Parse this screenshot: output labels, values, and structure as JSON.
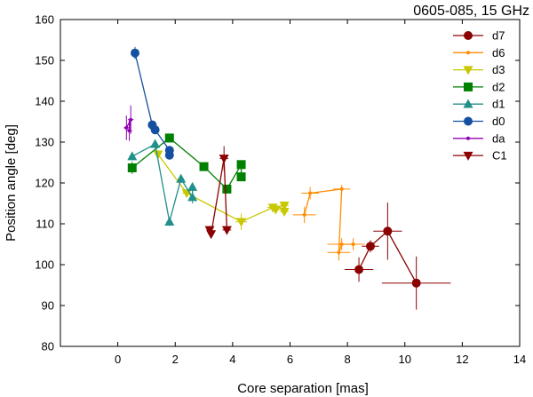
{
  "chart_data": {
    "type": "scatter",
    "title": "0605-085, 15 GHz",
    "xlabel": "Core separation [mas]",
    "ylabel": "Position angle [deg]",
    "xlim": [
      -2,
      14
    ],
    "ylim": [
      80,
      160
    ],
    "xticks": [
      0,
      2,
      4,
      6,
      8,
      10,
      12,
      14
    ],
    "yticks": [
      80,
      90,
      100,
      110,
      120,
      130,
      140,
      150,
      160
    ],
    "legend_position": "top-right",
    "series": [
      {
        "name": "d7",
        "color": "#8b0000",
        "marker": "circle",
        "points": [
          {
            "x": 8.4,
            "y": 98.8,
            "xerr": 0.5,
            "yerr": 3
          },
          {
            "x": 8.8,
            "y": 104.5,
            "xerr": 0.3,
            "yerr": 1.5
          },
          {
            "x": 9.4,
            "y": 108.2,
            "xerr": 0.5,
            "yerr": 7
          },
          {
            "x": 10.4,
            "y": 95.5,
            "xerr": 1.2,
            "yerr": 6.5
          }
        ]
      },
      {
        "name": "d6",
        "color": "#ff8c00",
        "marker": "dot",
        "points": [
          {
            "x": 6.5,
            "y": 112.2,
            "xerr": 0.4,
            "yerr": 2
          },
          {
            "x": 6.7,
            "y": 117.5,
            "xerr": 0.3,
            "yerr": 1.5
          },
          {
            "x": 7.8,
            "y": 118.5,
            "xerr": 0.3,
            "yerr": 1
          },
          {
            "x": 7.7,
            "y": 103.0,
            "xerr": 0.4,
            "yerr": 2
          },
          {
            "x": 7.8,
            "y": 105.0,
            "xerr": 0.5,
            "yerr": 1.5
          },
          {
            "x": 8.2,
            "y": 105.0,
            "xerr": 0.4,
            "yerr": 1.5
          }
        ]
      },
      {
        "name": "d3",
        "color": "#c8c800",
        "marker": "triangle-down",
        "points": [
          {
            "x": 1.4,
            "y": 127.0,
            "xerr": 0.1,
            "yerr": 1
          },
          {
            "x": 2.4,
            "y": 117.5,
            "xerr": 0.15,
            "yerr": 1
          },
          {
            "x": 4.3,
            "y": 110.5,
            "xerr": 0.2,
            "yerr": 2
          },
          {
            "x": 5.4,
            "y": 114.0,
            "xerr": 0.2,
            "yerr": 1
          },
          {
            "x": 5.5,
            "y": 113.5,
            "xerr": 0.15,
            "yerr": 0.5
          },
          {
            "x": 5.8,
            "y": 114.5,
            "xerr": 0.15,
            "yerr": 0.5
          },
          {
            "x": 5.8,
            "y": 113.0,
            "xerr": 0.15,
            "yerr": 0.5
          }
        ]
      },
      {
        "name": "d2",
        "color": "#008000",
        "marker": "square",
        "points": [
          {
            "x": 0.5,
            "y": 123.7,
            "xerr": 0.1,
            "yerr": 1.5
          },
          {
            "x": 1.8,
            "y": 131.0,
            "xerr": 0.1,
            "yerr": 1
          },
          {
            "x": 3.0,
            "y": 124.0,
            "xerr": 0.15,
            "yerr": 1
          },
          {
            "x": 3.8,
            "y": 118.5,
            "xerr": 0.1,
            "yerr": 1
          },
          {
            "x": 4.3,
            "y": 124.5,
            "xerr": 0.1,
            "yerr": 1
          },
          {
            "x": 4.3,
            "y": 121.5,
            "xerr": 0.1,
            "yerr": 1
          }
        ]
      },
      {
        "name": "d1",
        "color": "#20908a",
        "marker": "triangle-up",
        "points": [
          {
            "x": 0.5,
            "y": 126.5,
            "xerr": 0.1,
            "yerr": 1
          },
          {
            "x": 1.3,
            "y": 129.5,
            "xerr": 0.1,
            "yerr": 1
          },
          {
            "x": 1.8,
            "y": 110.5,
            "xerr": 0.1,
            "yerr": 1
          },
          {
            "x": 2.2,
            "y": 121.0,
            "xerr": 0.1,
            "yerr": 1
          },
          {
            "x": 2.6,
            "y": 116.5,
            "xerr": 0.1,
            "yerr": 1.5
          },
          {
            "x": 2.6,
            "y": 119.0,
            "xerr": 0.1,
            "yerr": 1
          }
        ]
      },
      {
        "name": "d0",
        "color": "#1450a0",
        "marker": "circle",
        "points": [
          {
            "x": 0.6,
            "y": 151.8,
            "xerr": 0.1,
            "yerr": 1.5
          },
          {
            "x": 1.2,
            "y": 134.2,
            "xerr": 0.1,
            "yerr": 1
          },
          {
            "x": 1.3,
            "y": 133.0,
            "xerr": 0.1,
            "yerr": 1
          },
          {
            "x": 1.8,
            "y": 128.0,
            "xerr": 0.1,
            "yerr": 1
          },
          {
            "x": 1.8,
            "y": 126.8,
            "xerr": 0.1,
            "yerr": 1
          }
        ]
      },
      {
        "name": "da",
        "color": "#9000b0",
        "marker": "dot",
        "points": [
          {
            "x": 0.3,
            "y": 133.5,
            "xerr": 0.1,
            "yerr": 3
          },
          {
            "x": 0.45,
            "y": 135.5,
            "xerr": 0.1,
            "yerr": 3.5
          },
          {
            "x": 0.4,
            "y": 132.8,
            "xerr": 0.1,
            "yerr": 2.5
          }
        ]
      },
      {
        "name": "C1",
        "color": "#8b0000",
        "marker": "triangle-down",
        "points": [
          {
            "x": 3.2,
            "y": 108.5,
            "xerr": 0.1,
            "yerr": 1
          },
          {
            "x": 3.25,
            "y": 107.5,
            "xerr": 0.1,
            "yerr": 1
          },
          {
            "x": 3.7,
            "y": 126.0,
            "xerr": 0.15,
            "yerr": 3
          },
          {
            "x": 3.8,
            "y": 108.5,
            "xerr": 0.15,
            "yerr": 1
          }
        ]
      }
    ]
  }
}
